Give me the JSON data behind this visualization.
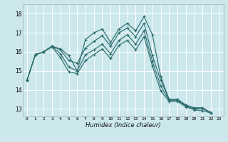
{
  "xlabel": "Humidex (Indice chaleur)",
  "bg_color": "#cce8ec",
  "grid_color": "#ffffff",
  "line_color": "#2e6e6e",
  "xlim": [
    -0.5,
    23.5
  ],
  "ylim": [
    12.6,
    18.5
  ],
  "yticks": [
    13,
    14,
    15,
    16,
    17,
    18
  ],
  "xticks": [
    0,
    1,
    2,
    3,
    4,
    5,
    6,
    7,
    8,
    9,
    10,
    11,
    12,
    13,
    14,
    15,
    16,
    17,
    18,
    19,
    20,
    21,
    22,
    23
  ],
  "series": [
    [
      14.5,
      15.85,
      16.0,
      16.3,
      16.15,
      15.8,
      15.0,
      16.65,
      17.0,
      17.2,
      16.5,
      17.2,
      17.5,
      17.1,
      17.85,
      16.9,
      14.7,
      13.5,
      13.5,
      13.2,
      13.05,
      13.05,
      12.8
    ],
    [
      14.5,
      15.85,
      16.0,
      16.3,
      16.1,
      15.55,
      15.4,
      16.2,
      16.55,
      16.85,
      16.3,
      17.0,
      17.25,
      16.8,
      17.5,
      15.8,
      14.5,
      13.5,
      13.5,
      13.2,
      13.05,
      13.05,
      12.8
    ],
    [
      14.5,
      15.85,
      16.0,
      16.3,
      15.9,
      15.2,
      15.0,
      15.85,
      16.1,
      16.4,
      15.9,
      16.6,
      16.9,
      16.4,
      17.1,
      15.5,
      14.2,
      13.45,
      13.45,
      13.15,
      13.0,
      13.0,
      12.8
    ],
    [
      14.5,
      15.85,
      16.0,
      16.25,
      15.7,
      14.95,
      14.85,
      15.55,
      15.85,
      16.15,
      15.65,
      16.35,
      16.6,
      16.1,
      16.8,
      15.25,
      13.95,
      13.4,
      13.4,
      13.1,
      12.95,
      12.9,
      12.78
    ]
  ],
  "x_values": [
    0,
    1,
    2,
    3,
    4,
    5,
    6,
    7,
    8,
    9,
    10,
    11,
    12,
    13,
    14,
    15,
    16,
    17,
    18,
    19,
    20,
    21,
    22
  ]
}
